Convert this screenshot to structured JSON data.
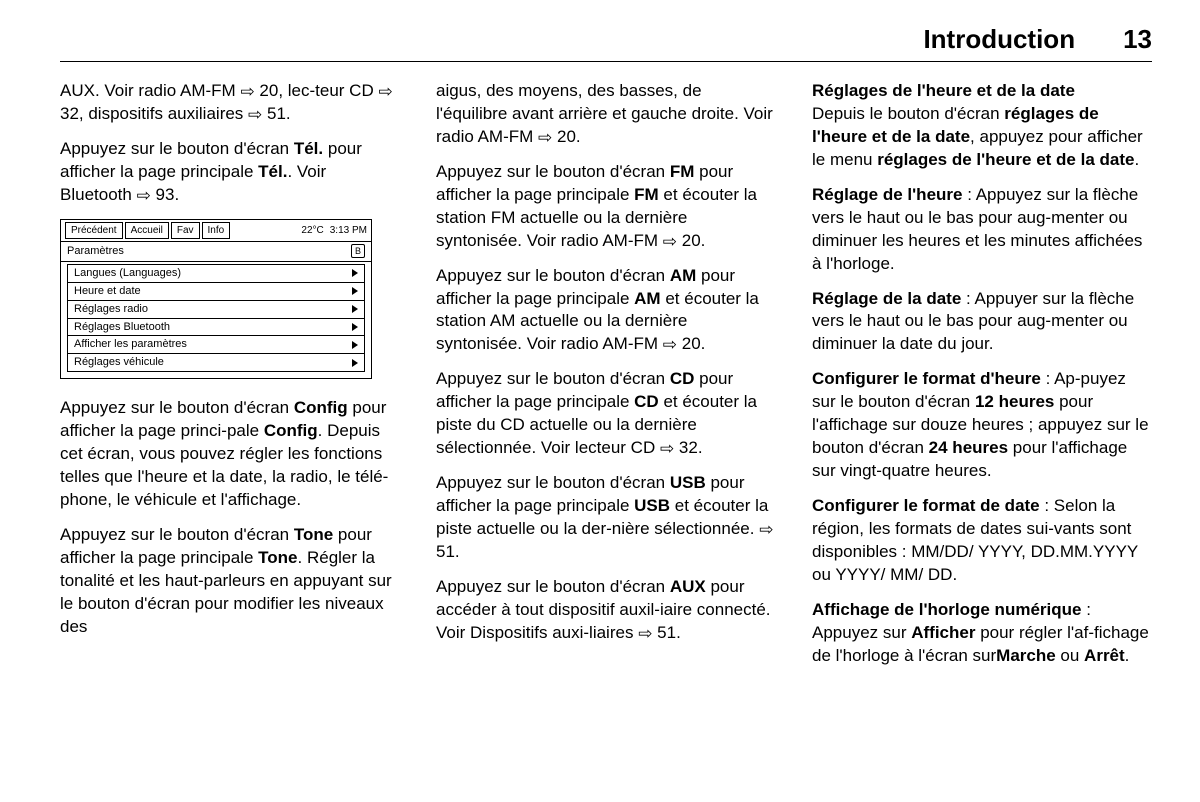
{
  "header": {
    "title": "Introduction",
    "page": "13"
  },
  "arrow_glyph": "⇨",
  "screen": {
    "tabs": [
      "Précédent",
      "Accueil",
      "Fav",
      "Info"
    ],
    "temp": "22°C",
    "time": "3:13  PM",
    "subhead": "Paramètres",
    "bt_glyph": "B",
    "items": [
      "Langues (Languages)",
      "Heure et date",
      "Réglages radio",
      "Réglages Bluetooth",
      "Afficher les paramètres",
      "Réglages véhicule"
    ]
  },
  "col1": {
    "p1": {
      "pre": "AUX. Voir radio AM-FM ",
      "r1": " 20, lec-teur CD ",
      "r2": " 32, dispositifs auxiliaires ",
      "r3": " 51."
    },
    "p2": {
      "a": "Appuyez sur le bouton d'écran ",
      "b1": "Tél.",
      "c": " pour afficher la page principale ",
      "b2": "Tél.",
      "d": ". Voir Bluetooth ",
      "e": " 93."
    },
    "p3": {
      "a": "Appuyez sur le bouton d'écran ",
      "b1": "Config",
      "c": " pour afficher la page princi-pale ",
      "b2": "Config",
      "d": ". Depuis cet écran, vous pouvez régler les fonctions telles que l'heure et la date, la radio, le télé-phone, le véhicule et l'affichage."
    },
    "p4": {
      "a": "Appuyez sur le bouton d'écran ",
      "b1": "Tone",
      "c": " pour afficher la page principale ",
      "b2": "Tone",
      "d": ". Régler la tonalité et les haut-parleurs en appuyant sur le bouton d'écran pour modifier les niveaux des"
    }
  },
  "col2": {
    "p1": {
      "a": "aigus, des moyens, des basses, de l'équilibre avant arrière et gauche droite. Voir radio AM-FM ",
      "r": " 20."
    },
    "p2": {
      "a": "Appuyez sur le bouton d'écran ",
      "b1": "FM",
      "c": " pour afficher la page principale ",
      "b2": "FM",
      "d": " et écouter la station FM actuelle ou la dernière syntonisée. Voir radio AM-FM ",
      "r": " 20."
    },
    "p3": {
      "a": "Appuyez sur le bouton d'écran ",
      "b1": "AM",
      "c": " pour afficher la page principale ",
      "b2": "AM",
      "d": " et écouter la station AM actuelle ou la dernière syntonisée. Voir radio AM-FM ",
      "r": " 20."
    },
    "p4": {
      "a": "Appuyez sur le bouton d'écran ",
      "b1": "CD",
      "c": " pour afficher la page principale ",
      "b2": "CD",
      "d": " et écouter la piste du CD actuelle ou la dernière sélectionnée. Voir lecteur CD ",
      "r": " 32."
    },
    "p5": {
      "a": "Appuyez sur le bouton d'écran ",
      "b1": "USB",
      "c": " pour afficher la page principale ",
      "b2": "USB",
      "d": " et écouter la piste actuelle ou la der-nière sélectionnée. ",
      "r": " 51."
    },
    "p6": {
      "a": "Appuyez sur le bouton d'écran ",
      "b1": "AUX",
      "c": " pour accéder à tout dispositif auxil-iaire connecté. Voir Dispositifs auxi-liaires ",
      "r": " 51."
    }
  },
  "col3": {
    "h1": "Réglages de l'heure et de la date",
    "p1": {
      "a": "Depuis le bouton d'écran ",
      "b1": "réglages de l'heure et de la date",
      "c": ", appuyez pour afficher le menu ",
      "b2": "réglages de l'heure et de la date",
      "d": "."
    },
    "p2": {
      "b": "Réglage de l'heure",
      "a": " : Appuyez sur la flèche vers le haut ou le bas pour aug-menter ou diminuer les heures et les minutes affichées à l'horloge."
    },
    "p3": {
      "b": "Réglage de la date",
      "a": " : Appuyer sur la flèche vers le haut ou le bas pour aug-menter ou diminuer la date du jour."
    },
    "p4": {
      "b": "Configurer le format d'heure",
      "a": " : Ap-puyez sur le bouton d'écran ",
      "b2": "12 heures",
      "c": " pour l'affichage sur douze heures ; appuyez sur le bouton d'écran ",
      "b3": "24 heures",
      "d": " pour l'affichage sur vingt-quatre heures."
    },
    "p5": {
      "b": "Configurer le format de date",
      "a": " : Selon la région, les formats de dates sui-vants sont disponibles : MM/DD/ YYYY, DD.MM.YYYY ou YYYY/ MM/ DD."
    },
    "p6": {
      "b": "Affichage de l'horloge numérique",
      "a": " : Appuyez sur ",
      "b2": "Afficher",
      "c": " pour régler l'af-fichage de l'horloge à l'écran sur",
      "b3": "Marche",
      "d": " ou ",
      "b4": "Arrêt",
      "e": "."
    }
  }
}
